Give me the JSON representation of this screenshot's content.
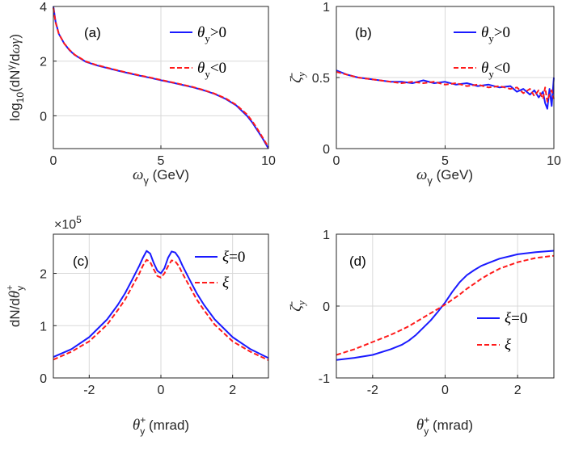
{
  "colors": {
    "solid": "#1a1aff",
    "dashed": "#ff1a1a",
    "grid": "#d9d9d9",
    "axis": "#262626"
  },
  "chart_data": [
    {
      "panel": "(a)",
      "type": "line",
      "xlabel": "ω_γ (GeV)",
      "ylabel": "log10(dN^γ/dωγ)",
      "xlim": [
        0,
        10
      ],
      "ylim": [
        -1.2,
        4
      ],
      "xticks": [
        "0",
        "5",
        "10"
      ],
      "yticks": [
        "0",
        "2",
        "4"
      ],
      "grid": true,
      "legend": "top-right",
      "series": [
        {
          "name": "θy>0",
          "style": "solid",
          "x": [
            0,
            0.1,
            0.25,
            0.5,
            0.75,
            1,
            1.5,
            2,
            2.5,
            3,
            3.5,
            4,
            4.5,
            5,
            5.5,
            6,
            6.5,
            7,
            7.5,
            8,
            8.5,
            9,
            9.25,
            9.5,
            9.75,
            10
          ],
          "y": [
            4.0,
            3.45,
            3.0,
            2.65,
            2.4,
            2.22,
            1.98,
            1.85,
            1.75,
            1.65,
            1.56,
            1.47,
            1.39,
            1.3,
            1.22,
            1.13,
            1.04,
            0.93,
            0.8,
            0.62,
            0.38,
            0.0,
            -0.25,
            -0.55,
            -0.85,
            -1.2
          ]
        },
        {
          "name": "θy<0",
          "style": "dashed",
          "x": [
            0,
            0.1,
            0.25,
            0.5,
            0.75,
            1,
            1.5,
            2,
            2.5,
            3,
            3.5,
            4,
            4.5,
            5,
            5.5,
            6,
            6.5,
            7,
            7.5,
            8,
            8.5,
            9,
            9.25,
            9.5,
            9.75,
            10
          ],
          "y": [
            3.95,
            3.42,
            3.0,
            2.65,
            2.41,
            2.23,
            1.99,
            1.86,
            1.76,
            1.66,
            1.57,
            1.48,
            1.4,
            1.31,
            1.23,
            1.14,
            1.05,
            0.94,
            0.81,
            0.64,
            0.4,
            0.05,
            -0.2,
            -0.5,
            -0.82,
            -1.15
          ]
        }
      ],
      "legend_labels": [
        "θ",
        "y",
        ">0",
        "θ",
        "y",
        "<0"
      ]
    },
    {
      "panel": "(b)",
      "type": "line",
      "xlabel": "ω_γ (GeV)",
      "ylabel": "ζ̄_y",
      "xlim": [
        0,
        10
      ],
      "ylim": [
        0,
        1
      ],
      "xticks": [
        "0",
        "5",
        "10"
      ],
      "yticks": [
        "0",
        "0.5",
        "1"
      ],
      "grid": true,
      "legend": "top-right",
      "series": [
        {
          "name": "θy>0",
          "style": "solid",
          "x": [
            0,
            0.5,
            1,
            1.5,
            2,
            2.5,
            3,
            3.5,
            4,
            4.5,
            5,
            5.5,
            6,
            6.5,
            7,
            7.5,
            8,
            8.3,
            8.6,
            8.9,
            9.1,
            9.3,
            9.5,
            9.6,
            9.7,
            9.8,
            9.9,
            10
          ],
          "y": [
            0.55,
            0.52,
            0.5,
            0.49,
            0.48,
            0.47,
            0.47,
            0.46,
            0.48,
            0.46,
            0.47,
            0.45,
            0.46,
            0.44,
            0.45,
            0.43,
            0.44,
            0.4,
            0.42,
            0.38,
            0.41,
            0.36,
            0.4,
            0.32,
            0.28,
            0.42,
            0.3,
            0.5
          ]
        },
        {
          "name": "θy<0",
          "style": "dashed",
          "x": [
            0,
            0.5,
            1,
            1.5,
            2,
            2.5,
            3,
            3.5,
            4,
            4.5,
            5,
            5.5,
            6,
            6.5,
            7,
            7.5,
            8,
            8.3,
            8.6,
            8.9,
            9.1,
            9.3,
            9.5,
            9.6,
            9.7,
            9.8,
            9.9,
            10
          ],
          "y": [
            0.54,
            0.52,
            0.5,
            0.49,
            0.48,
            0.47,
            0.46,
            0.47,
            0.46,
            0.47,
            0.45,
            0.46,
            0.44,
            0.45,
            0.43,
            0.44,
            0.42,
            0.43,
            0.39,
            0.42,
            0.37,
            0.41,
            0.35,
            0.43,
            0.33,
            0.38,
            0.41,
            0.35
          ]
        }
      ],
      "legend_labels": [
        "θ",
        "y",
        ">0",
        "θ",
        "y",
        "<0"
      ]
    },
    {
      "panel": "(c)",
      "type": "line",
      "xlabel": "θy+ (mrad)",
      "ylabel": "dN/dθy+",
      "multiplier": "×10",
      "multiplier_exp": "5",
      "xlim": [
        -3,
        3
      ],
      "ylim": [
        0,
        2.75
      ],
      "xticks": [
        "-2",
        "0",
        "2"
      ],
      "yticks": [
        "0",
        "1",
        "2"
      ],
      "grid": true,
      "legend": "top-right",
      "series": [
        {
          "name": "ξ=0",
          "style": "solid",
          "x": [
            -3,
            -2.5,
            -2,
            -1.5,
            -1.2,
            -1,
            -0.8,
            -0.6,
            -0.5,
            -0.4,
            -0.3,
            -0.2,
            -0.1,
            0,
            0.1,
            0.2,
            0.3,
            0.4,
            0.5,
            0.6,
            0.8,
            1,
            1.2,
            1.5,
            2,
            2.5,
            3
          ],
          "y": [
            0.4,
            0.55,
            0.78,
            1.12,
            1.4,
            1.62,
            1.88,
            2.15,
            2.3,
            2.43,
            2.38,
            2.2,
            2.05,
            2.0,
            2.1,
            2.3,
            2.42,
            2.4,
            2.3,
            2.15,
            1.88,
            1.62,
            1.4,
            1.12,
            0.78,
            0.55,
            0.38
          ]
        },
        {
          "name": "ξ",
          "style": "dashed",
          "x": [
            -3,
            -2.5,
            -2,
            -1.5,
            -1.2,
            -1,
            -0.8,
            -0.6,
            -0.5,
            -0.4,
            -0.3,
            -0.2,
            -0.1,
            0,
            0.1,
            0.2,
            0.3,
            0.4,
            0.5,
            0.6,
            0.8,
            1,
            1.2,
            1.5,
            2,
            2.5,
            3
          ],
          "y": [
            0.35,
            0.5,
            0.7,
            1.02,
            1.3,
            1.5,
            1.75,
            2.0,
            2.15,
            2.26,
            2.22,
            2.08,
            1.95,
            1.92,
            2.0,
            2.14,
            2.25,
            2.23,
            2.14,
            2.0,
            1.75,
            1.5,
            1.3,
            1.02,
            0.7,
            0.5,
            0.34
          ]
        }
      ],
      "legend_labels": [
        "ξ",
        "=0",
        "ξ"
      ]
    },
    {
      "panel": "(d)",
      "type": "line",
      "xlabel": "θy+ (mrad)",
      "ylabel": "ζ̄_y",
      "xlim": [
        -3,
        3
      ],
      "ylim": [
        -1,
        1
      ],
      "xticks": [
        "-2",
        "0",
        "2"
      ],
      "yticks": [
        "-1",
        "0",
        "1"
      ],
      "grid": true,
      "legend": "bottom-right",
      "series": [
        {
          "name": "ξ=0",
          "style": "solid",
          "x": [
            -3,
            -2.5,
            -2,
            -1.5,
            -1.2,
            -1,
            -0.8,
            -0.6,
            -0.4,
            -0.2,
            0,
            0.2,
            0.4,
            0.6,
            0.8,
            1,
            1.2,
            1.5,
            2,
            2.5,
            3
          ],
          "y": [
            -0.75,
            -0.72,
            -0.68,
            -0.6,
            -0.54,
            -0.48,
            -0.4,
            -0.3,
            -0.2,
            -0.08,
            0.05,
            0.2,
            0.33,
            0.43,
            0.5,
            0.56,
            0.6,
            0.66,
            0.72,
            0.75,
            0.77
          ]
        },
        {
          "name": "ξ",
          "style": "dashed",
          "x": [
            -3,
            -2.5,
            -2,
            -1.5,
            -1.2,
            -1,
            -0.8,
            -0.6,
            -0.4,
            -0.2,
            0,
            0.2,
            0.4,
            0.6,
            0.8,
            1,
            1.2,
            1.5,
            2,
            2.5,
            3
          ],
          "y": [
            -0.68,
            -0.6,
            -0.5,
            -0.4,
            -0.33,
            -0.28,
            -0.22,
            -0.16,
            -0.1,
            -0.04,
            0.02,
            0.09,
            0.16,
            0.24,
            0.31,
            0.38,
            0.44,
            0.52,
            0.61,
            0.67,
            0.7
          ]
        }
      ],
      "legend_labels": [
        "ξ",
        "=0",
        "ξ"
      ]
    }
  ]
}
